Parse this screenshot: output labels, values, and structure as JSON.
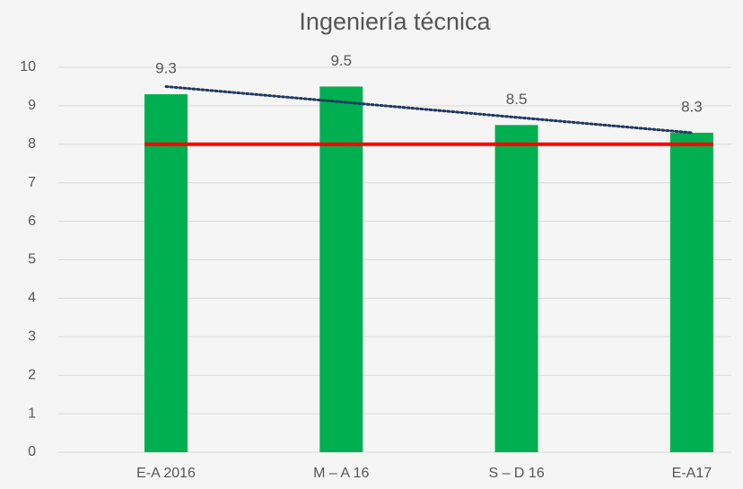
{
  "chart_data": {
    "type": "bar",
    "title": "Ingeniería técnica",
    "categories": [
      "E-A 2016",
      "M – A 16",
      "S – D 16",
      "E-A17"
    ],
    "values": [
      9.3,
      9.5,
      8.5,
      8.3
    ],
    "color": "#00b050",
    "ylim": [
      0,
      10
    ],
    "yticks": [
      0,
      1,
      2,
      3,
      4,
      5,
      6,
      7,
      8,
      9,
      10
    ],
    "grid": true,
    "reference_line": {
      "value": 8,
      "color": "#ff0000"
    },
    "trendline": {
      "kind": "linear",
      "color": "#1f3864",
      "style": "dotted"
    }
  }
}
